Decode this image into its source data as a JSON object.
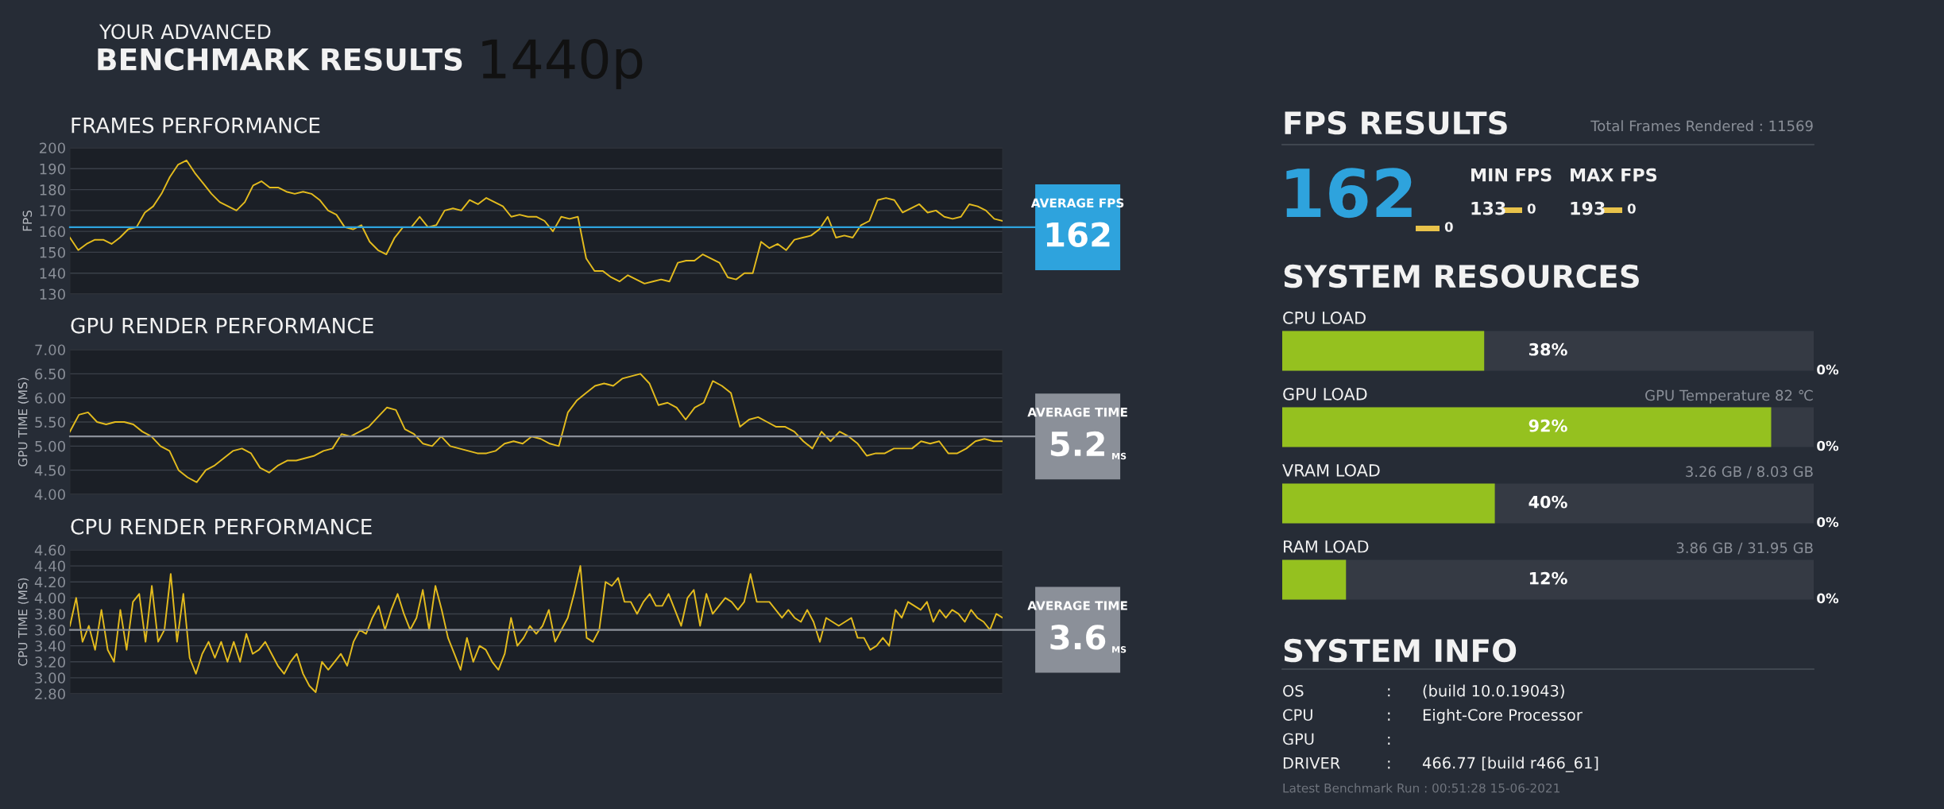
{
  "chart_data": [
    {
      "type": "other",
      "title": "BENCHMARK RESULTS",
      "subtitle": "YOUR ADVANCED",
      "annotations": [
        "1440p"
      ]
    },
    {
      "type": "line",
      "title": "FRAMES PERFORMANCE",
      "ylabel": "FPS",
      "categories": [
        null,
        null,
        null,
        null,
        null,
        null,
        null,
        null,
        null,
        null,
        null,
        null,
        null,
        null,
        null,
        null,
        null,
        null,
        null,
        null,
        null,
        null,
        null,
        null,
        null,
        null,
        null,
        null,
        null,
        null,
        null,
        null,
        null,
        null,
        null,
        null,
        null,
        null,
        null,
        null,
        null,
        null,
        null,
        null,
        null,
        null,
        null,
        null,
        null,
        null,
        null,
        null,
        null,
        null,
        null,
        null,
        null,
        null,
        null,
        null,
        null,
        null,
        null,
        null,
        null,
        null,
        null,
        null,
        null,
        null,
        null,
        null,
        null,
        null,
        null,
        null,
        null,
        null,
        null,
        null,
        null,
        null,
        null,
        null,
        null,
        null,
        null,
        null,
        null,
        null,
        null,
        null,
        null,
        null,
        null,
        null,
        null,
        null,
        null,
        null,
        null,
        null,
        null,
        null,
        null,
        null,
        null,
        null,
        null,
        null,
        null,
        null,
        null
      ],
      "series": [
        {
          "color": "#e3bb1e",
          "values": [
            157,
            151,
            154,
            156,
            156,
            154,
            157,
            161,
            162,
            169,
            172,
            178,
            186,
            192,
            194,
            188,
            183,
            178,
            174,
            172,
            170,
            174,
            182,
            184,
            181,
            181,
            179,
            178,
            179,
            178,
            175,
            170,
            168,
            162,
            161,
            163,
            155,
            151,
            149,
            157,
            162,
            162,
            167,
            162,
            163,
            170,
            171,
            170,
            175,
            173,
            176,
            174,
            172,
            167,
            168,
            167,
            167,
            165,
            160,
            167,
            166,
            167,
            147,
            141,
            141,
            138,
            136,
            139,
            137,
            135,
            136,
            137,
            136,
            145,
            146,
            146,
            149,
            147,
            145,
            138,
            137,
            140,
            140,
            155,
            152,
            154,
            151,
            156,
            157,
            158,
            161,
            167,
            157,
            158,
            157,
            163,
            165,
            175,
            176,
            175,
            169,
            171,
            173,
            169,
            170,
            167,
            166,
            167,
            173,
            172,
            170,
            166,
            165
          ]
        }
      ],
      "ylim": [
        130,
        200
      ],
      "yticks": [
        130,
        140,
        150,
        160,
        170,
        180,
        190,
        200
      ],
      "grid": "y",
      "tick_labels": "y",
      "ref_lines": [
        {
          "axis": "y",
          "value": 162,
          "label": "AVERAGE FPS\n162",
          "color": "#2ea3dd"
        }
      ]
    },
    {
      "type": "line",
      "title": "GPU RENDER PERFORMANCE",
      "ylabel": "GPU TIME (MS)",
      "categories": [
        null,
        null,
        null,
        null,
        null,
        null,
        null,
        null,
        null,
        null,
        null,
        null,
        null,
        null,
        null,
        null,
        null,
        null,
        null,
        null,
        null,
        null,
        null,
        null,
        null,
        null,
        null,
        null,
        null,
        null,
        null,
        null,
        null,
        null,
        null,
        null,
        null,
        null,
        null,
        null,
        null,
        null,
        null,
        null,
        null,
        null,
        null,
        null,
        null,
        null,
        null,
        null,
        null,
        null,
        null,
        null,
        null,
        null,
        null,
        null,
        null,
        null,
        null,
        null,
        null,
        null,
        null,
        null,
        null,
        null,
        null,
        null,
        null,
        null,
        null,
        null,
        null,
        null,
        null,
        null,
        null,
        null,
        null,
        null,
        null,
        null,
        null,
        null,
        null,
        null,
        null,
        null,
        null,
        null,
        null,
        null,
        null,
        null,
        null,
        null,
        null,
        null,
        null,
        null
      ],
      "series": [
        {
          "color": "#e3bb1e",
          "values": [
            5.3,
            5.65,
            5.7,
            5.5,
            5.45,
            5.5,
            5.5,
            5.45,
            5.3,
            5.2,
            5.0,
            4.9,
            4.5,
            4.35,
            4.25,
            4.5,
            4.6,
            4.75,
            4.9,
            4.95,
            4.85,
            4.55,
            4.45,
            4.6,
            4.7,
            4.7,
            4.75,
            4.8,
            4.9,
            4.95,
            5.25,
            5.2,
            5.3,
            5.4,
            5.6,
            5.8,
            5.75,
            5.35,
            5.25,
            5.05,
            5.0,
            5.2,
            5.0,
            4.95,
            4.9,
            4.85,
            4.85,
            4.9,
            5.05,
            5.1,
            5.05,
            5.2,
            5.15,
            5.05,
            5.0,
            5.7,
            5.95,
            6.1,
            6.25,
            6.3,
            6.25,
            6.4,
            6.45,
            6.5,
            6.3,
            5.85,
            5.9,
            5.8,
            5.55,
            5.8,
            5.9,
            6.35,
            6.25,
            6.1,
            5.4,
            5.55,
            5.6,
            5.5,
            5.4,
            5.4,
            5.3,
            5.1,
            4.95,
            5.3,
            5.1,
            5.3,
            5.2,
            5.05,
            4.8,
            4.85,
            4.85,
            4.95,
            4.95,
            4.95,
            5.1,
            5.05,
            5.1,
            4.85,
            4.85,
            4.95,
            5.1,
            5.15,
            5.1,
            5.1
          ]
        }
      ],
      "ylim": [
        4,
        7
      ],
      "yticks": [
        {
          "value": 4,
          "label": "4.00"
        },
        {
          "value": 4.5,
          "label": "4.50"
        },
        {
          "value": 5,
          "label": "5.00"
        },
        {
          "value": 5.5,
          "label": "5.50"
        },
        {
          "value": 6,
          "label": "6.00"
        },
        {
          "value": 6.5,
          "label": "6.50"
        },
        {
          "value": 7,
          "label": "7.00"
        }
      ],
      "grid": "y",
      "tick_labels": "y",
      "ref_lines": [
        {
          "axis": "y",
          "value": 5.2,
          "label": "AVERAGE TIME\n5.2 MS",
          "color": "#8b9099"
        }
      ]
    },
    {
      "type": "line",
      "title": "CPU RENDER PERFORMANCE",
      "ylabel": "CPU TIME (MS)",
      "categories": [
        null,
        null,
        null,
        null,
        null,
        null,
        null,
        null,
        null,
        null,
        null,
        null,
        null,
        null,
        null,
        null,
        null,
        null,
        null,
        null,
        null,
        null,
        null,
        null,
        null,
        null,
        null,
        null,
        null,
        null,
        null,
        null,
        null,
        null,
        null,
        null,
        null,
        null,
        null,
        null,
        null,
        null,
        null,
        null,
        null,
        null,
        null,
        null,
        null,
        null,
        null,
        null,
        null,
        null,
        null,
        null,
        null,
        null,
        null,
        null,
        null,
        null,
        null,
        null,
        null,
        null,
        null,
        null,
        null,
        null,
        null,
        null,
        null,
        null,
        null,
        null,
        null,
        null,
        null,
        null,
        null,
        null,
        null,
        null,
        null,
        null,
        null,
        null,
        null,
        null,
        null,
        null,
        null,
        null,
        null,
        null,
        null,
        null,
        null,
        null,
        null,
        null,
        null,
        null,
        null,
        null,
        null,
        null,
        null,
        null,
        null,
        null,
        null,
        null,
        null,
        null,
        null,
        null,
        null,
        null,
        null,
        null,
        null,
        null,
        null,
        null,
        null,
        null,
        null,
        null,
        null,
        null,
        null,
        null,
        null,
        null,
        null,
        null,
        null,
        null,
        null,
        null,
        null,
        null,
        null,
        null,
        null,
        null,
        null
      ],
      "series": [
        {
          "color": "#e3bb1e",
          "values": [
            3.65,
            4.0,
            3.45,
            3.65,
            3.35,
            3.85,
            3.35,
            3.2,
            3.85,
            3.35,
            3.95,
            4.05,
            3.45,
            4.15,
            3.45,
            3.6,
            4.3,
            3.45,
            4.05,
            3.25,
            3.05,
            3.3,
            3.45,
            3.25,
            3.45,
            3.2,
            3.45,
            3.2,
            3.55,
            3.3,
            3.35,
            3.45,
            3.3,
            3.15,
            3.05,
            3.2,
            3.3,
            3.05,
            2.9,
            2.82,
            3.2,
            3.1,
            3.2,
            3.3,
            3.15,
            3.45,
            3.6,
            3.55,
            3.75,
            3.9,
            3.6,
            3.85,
            4.05,
            3.8,
            3.6,
            3.75,
            4.1,
            3.6,
            4.15,
            3.85,
            3.5,
            3.3,
            3.1,
            3.5,
            3.2,
            3.4,
            3.35,
            3.2,
            3.1,
            3.3,
            3.75,
            3.4,
            3.5,
            3.65,
            3.55,
            3.65,
            3.85,
            3.45,
            3.6,
            3.75,
            4.05,
            4.4,
            3.5,
            3.45,
            3.6,
            4.2,
            4.15,
            4.25,
            3.95,
            3.95,
            3.8,
            3.95,
            4.05,
            3.9,
            3.9,
            4.05,
            3.85,
            3.65,
            4.0,
            4.1,
            3.65,
            4.05,
            3.8,
            3.9,
            4.0,
            3.95,
            3.85,
            3.95,
            4.3,
            3.95,
            3.95,
            3.95,
            3.85,
            3.75,
            3.85,
            3.75,
            3.7,
            3.85,
            3.7,
            3.45,
            3.75,
            3.7,
            3.65,
            3.7,
            3.75,
            3.5,
            3.5,
            3.35,
            3.4,
            3.5,
            3.4,
            3.85,
            3.75,
            3.95,
            3.9,
            3.85,
            3.95,
            3.7,
            3.85,
            3.75,
            3.85,
            3.8,
            3.7,
            3.85,
            3.75,
            3.7,
            3.6,
            3.8,
            3.75
          ]
        }
      ],
      "ylim": [
        2.8,
        4.6
      ],
      "yticks": [
        {
          "value": 2.8,
          "label": "2.80"
        },
        {
          "value": 3.0,
          "label": "3.00"
        },
        {
          "value": 3.2,
          "label": "3.20"
        },
        {
          "value": 3.4,
          "label": "3.40"
        },
        {
          "value": 3.6,
          "label": "3.60"
        },
        {
          "value": 3.8,
          "label": "3.80"
        },
        {
          "value": 4.0,
          "label": "4.00"
        },
        {
          "value": 4.2,
          "label": "4.20"
        },
        {
          "value": 4.4,
          "label": "4.40"
        },
        {
          "value": 4.6,
          "label": "4.60"
        }
      ],
      "grid": "y",
      "tick_labels": "y",
      "ref_lines": [
        {
          "axis": "y",
          "value": 3.6,
          "label": "AVERAGE TIME\n3.6 MS",
          "color": "#8b9099"
        }
      ]
    },
    {
      "type": "other",
      "title": "FPS RESULTS",
      "color": "#2ea3dd",
      "annotations": [
        "Total Frames Rendered : 11569",
        "162",
        "0",
        "MIN FPS",
        "133",
        "0",
        "MAX FPS",
        "193",
        "0"
      ]
    },
    {
      "type": "bar",
      "orientation": "horizontal",
      "title": "SYSTEM RESOURCES",
      "categories": [
        "CPU LOAD",
        "GPU LOAD",
        "VRAM LOAD",
        "RAM LOAD"
      ],
      "values": [
        38,
        92,
        40,
        12
      ],
      "value_labels": [
        "38%",
        "92%",
        "40%",
        "12%"
      ],
      "color": "#95c11f",
      "xlim": [
        0,
        100
      ],
      "tick_labels": false,
      "annotations": [
        "GPU Temperature 82 ℃",
        "3.26 GB / 8.03 GB",
        "3.86 GB / 31.95 GB",
        "0%",
        "0%",
        "0%",
        "0%"
      ]
    },
    {
      "type": "other",
      "title": "SYSTEM INFO",
      "annotations": [
        "OS\t:\t(build 10.0.19043)",
        "CPU\t:\tEight-Core Processor",
        "GPU\t:",
        "DRIVER\t:\t466.77 [build r466_61]",
        "Latest Benchmark Run : 00:51:28 15-06-2021"
      ]
    }
  ]
}
